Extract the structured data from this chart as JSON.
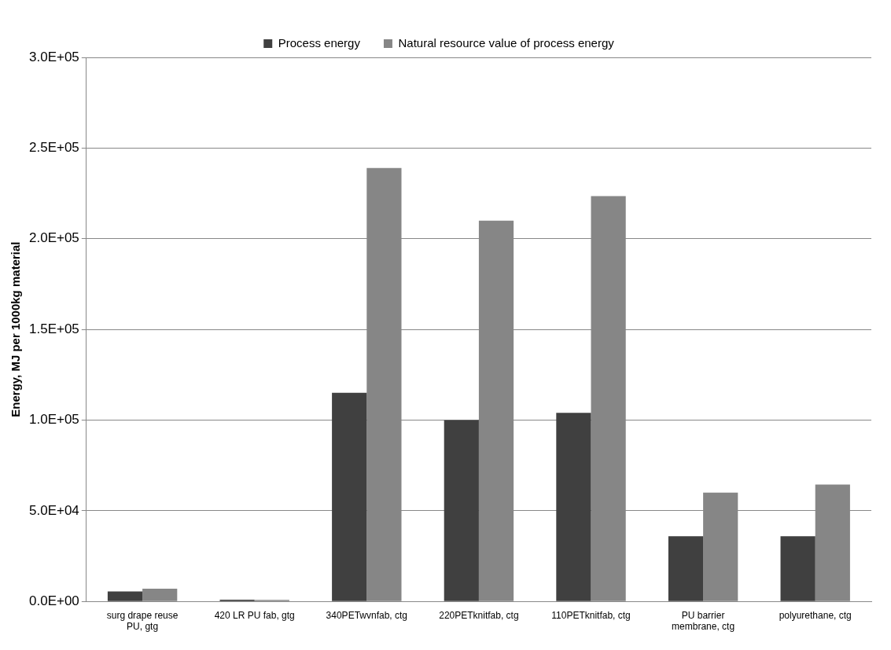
{
  "chart_data": {
    "type": "bar",
    "ylabel": "Energy, MJ per 1000kg material",
    "categories": [
      "surg drape reuse PU, gtg",
      "420 LR PU fab, gtg",
      "340PETwvnfab, ctg",
      "220PETknitfab, ctg",
      "110PETknitfab, ctg",
      "PU barrier membrane, ctg",
      "polyurethane, ctg"
    ],
    "series": [
      {
        "name": "Process energy",
        "color": "#404040",
        "values": [
          5500,
          1000,
          115000,
          100000,
          104000,
          36000,
          36000
        ]
      },
      {
        "name": "Natural resource value of process energy",
        "color": "#868686",
        "values": [
          7000,
          800,
          239000,
          210000,
          223500,
          60000,
          64500
        ]
      }
    ],
    "ylim": [
      0,
      300000
    ],
    "yticks": [
      {
        "value": 0,
        "label": "0.0E+00"
      },
      {
        "value": 50000,
        "label": "5.0E+04"
      },
      {
        "value": 100000,
        "label": "1.0E+05"
      },
      {
        "value": 150000,
        "label": "1.5E+05"
      },
      {
        "value": 200000,
        "label": "2.0E+05"
      },
      {
        "value": 250000,
        "label": "2.5E+05"
      },
      {
        "value": 300000,
        "label": "3.0E+05"
      }
    ],
    "grid": "y",
    "legend": "top"
  }
}
